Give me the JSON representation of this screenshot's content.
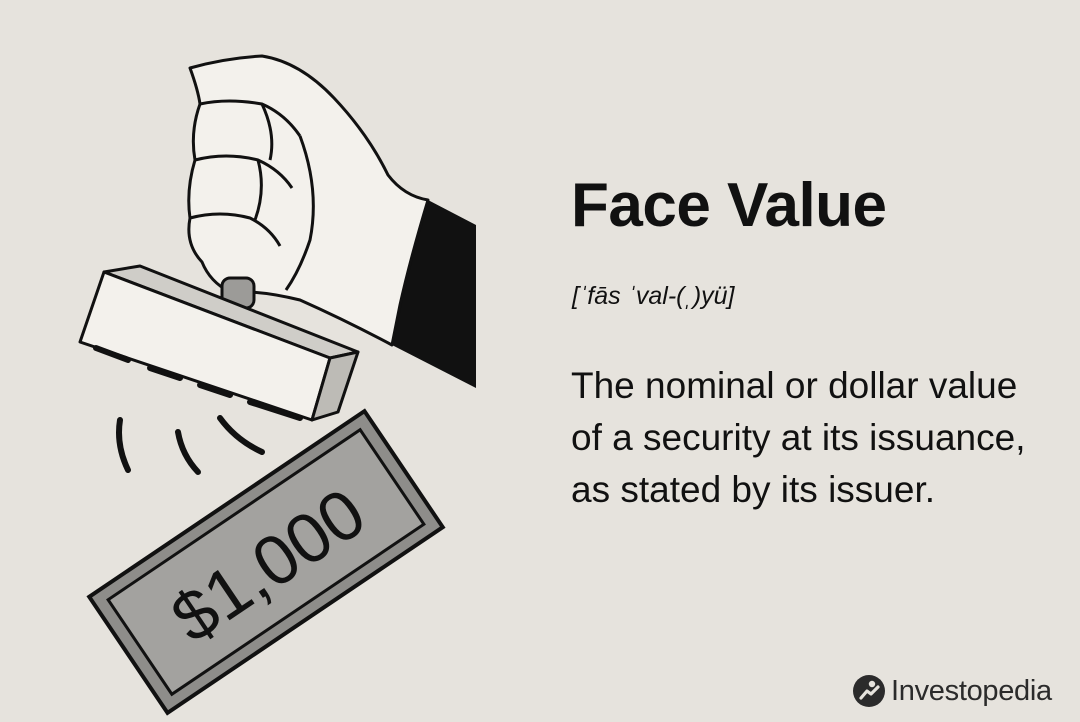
{
  "term": {
    "title": "Face Value",
    "pronunciation": "[ˈfās ˈval-(ˌ)yü]",
    "definition": "The nominal or dollar value of a security at its issuance, as stated by its issuer."
  },
  "illustration": {
    "bill_amount": "$1,000",
    "icon": "hand-stamping-bill-illustration"
  },
  "brand": {
    "name": "Investopedia",
    "icon": "investopedia-logo-icon"
  },
  "colors": {
    "background": "#e6e3dd",
    "text": "#111111",
    "bill": "#9a9996",
    "sleeve": "#111111"
  }
}
